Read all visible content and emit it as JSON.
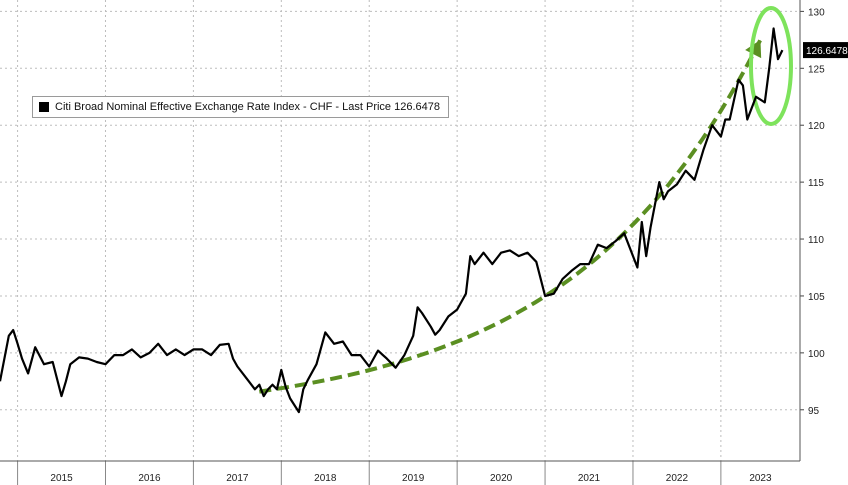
{
  "chart_data": {
    "type": "line",
    "title": "",
    "xlabel": "",
    "ylabel": "",
    "legend": {
      "text": "Citi Broad Nominal Effective Exchange Rate Index - CHF - Last Price 126.6478",
      "position": "top-left"
    },
    "last_price_label": "126.6478",
    "grid": true,
    "xlim": [
      2014.8,
      2023.9
    ],
    "ylim": [
      90.5,
      131
    ],
    "x_ticks": [
      "2015",
      "2016",
      "2017",
      "2018",
      "2019",
      "2020",
      "2021",
      "2022",
      "2023"
    ],
    "y_ticks": [
      "95",
      "100",
      "105",
      "110",
      "115",
      "120",
      "125",
      "130"
    ],
    "colors": {
      "series": "#000000",
      "trend_arrow": "#5b8f22",
      "highlight_ellipse": "#7ee35c",
      "badge": "#000000"
    },
    "series": [
      {
        "x": [
          2014.8,
          2014.9,
          2014.95,
          2015.0,
          2015.05,
          2015.12,
          2015.2,
          2015.3,
          2015.4,
          2015.5,
          2015.55,
          2015.6,
          2015.7,
          2015.8,
          2015.9,
          2016.0,
          2016.1,
          2016.2,
          2016.3,
          2016.4,
          2016.5,
          2016.6,
          2016.7,
          2016.8,
          2016.9,
          2017.0,
          2017.1,
          2017.2,
          2017.3,
          2017.4,
          2017.45,
          2017.5,
          2017.6,
          2017.7,
          2017.75,
          2017.8,
          2017.85,
          2017.9,
          2017.95,
          2018.0,
          2018.05,
          2018.1,
          2018.2,
          2018.25,
          2018.3,
          2018.4,
          2018.5,
          2018.6,
          2018.7,
          2018.8,
          2018.9,
          2019.0,
          2019.1,
          2019.2,
          2019.3,
          2019.4,
          2019.5,
          2019.55,
          2019.6,
          2019.7,
          2019.75,
          2019.8,
          2019.9,
          2020.0,
          2020.1,
          2020.15,
          2020.2,
          2020.3,
          2020.4,
          2020.5,
          2020.6,
          2020.7,
          2020.8,
          2020.9,
          2021.0,
          2021.1,
          2021.2,
          2021.3,
          2021.4,
          2021.5,
          2021.6,
          2021.7,
          2021.8,
          2021.9,
          2022.0,
          2022.05,
          2022.1,
          2022.15,
          2022.2,
          2022.3,
          2022.35,
          2022.4,
          2022.5,
          2022.6,
          2022.7,
          2022.8,
          2022.9,
          2023.0,
          2023.05,
          2023.1,
          2023.2,
          2023.25,
          2023.3,
          2023.4,
          2023.5,
          2023.55,
          2023.6,
          2023.65,
          2023.7
        ],
        "y": [
          97.5,
          101.5,
          102.0,
          100.8,
          99.5,
          98.2,
          100.5,
          99.0,
          99.2,
          96.2,
          97.5,
          99.0,
          99.6,
          99.5,
          99.2,
          99.0,
          99.8,
          99.8,
          100.3,
          99.6,
          100.0,
          100.8,
          99.8,
          100.3,
          99.8,
          100.3,
          100.3,
          99.8,
          100.7,
          100.8,
          99.5,
          98.8,
          97.8,
          96.8,
          97.2,
          96.2,
          96.8,
          97.2,
          96.8,
          98.5,
          97.0,
          96.0,
          94.8,
          96.8,
          97.6,
          99.0,
          101.8,
          100.8,
          101.0,
          99.8,
          99.8,
          98.8,
          100.2,
          99.5,
          98.7,
          99.8,
          101.5,
          104.0,
          103.5,
          102.3,
          101.6,
          102.0,
          103.2,
          103.8,
          105.2,
          108.5,
          107.8,
          108.8,
          107.8,
          108.8,
          109.0,
          108.5,
          108.8,
          108.0,
          105.0,
          105.2,
          106.5,
          107.2,
          107.8,
          107.8,
          109.5,
          109.2,
          109.8,
          110.5,
          108.5,
          107.5,
          111.5,
          108.5,
          111.0,
          115.0,
          113.5,
          114.2,
          114.8,
          116.0,
          115.2,
          117.8,
          120.0,
          119.0,
          120.5,
          120.5,
          124.0,
          123.5,
          120.5,
          122.5,
          122.0,
          125.0,
          128.5,
          125.8,
          126.6
        ]
      }
    ]
  }
}
